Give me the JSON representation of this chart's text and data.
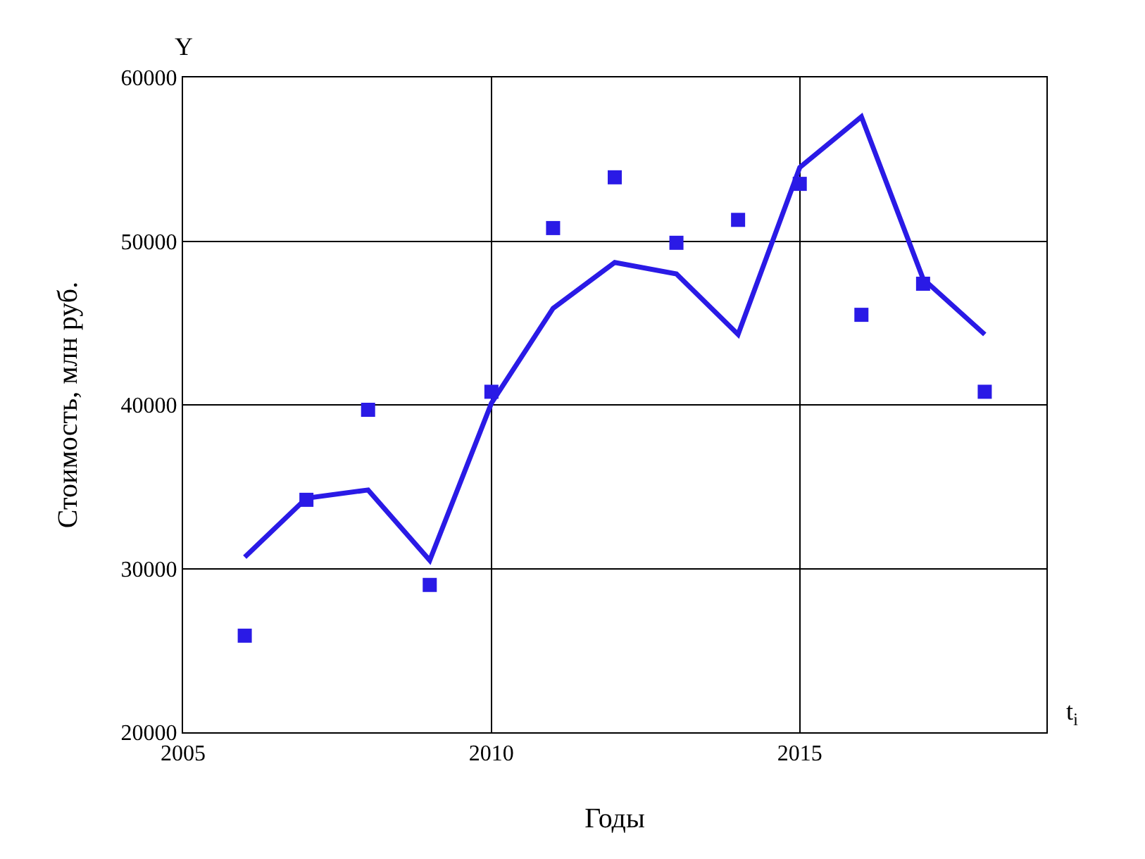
{
  "chart_data": {
    "type": "line",
    "xlabel": "Годы",
    "ylabel": "Стоимость, млн руб.",
    "annotations": [
      "Y",
      "t$_{i}$"
    ],
    "xlim": [
      2005,
      2019
    ],
    "xticks": [
      2005,
      2010,
      2015
    ],
    "ylim": [
      20000,
      60000
    ],
    "yticks": [
      20000,
      30000,
      40000,
      50000,
      60000
    ],
    "grid": true,
    "series": [
      {
        "color": "#2a1ae6",
        "marker": "none",
        "line_style": "solid",
        "x": [
          2006,
          2007,
          2008,
          2009,
          2010,
          2011,
          2012,
          2013,
          2014,
          2015,
          2016,
          2017,
          2018
        ],
        "values": [
          30700,
          34300,
          34800,
          30500,
          40100,
          45900,
          48700,
          48000,
          44300,
          54500,
          57600,
          47700,
          44300
        ]
      },
      {
        "type": "scatter",
        "color": "#2a1ae6",
        "marker": "square",
        "x": [
          2006,
          2007,
          2008,
          2009,
          2010,
          2011,
          2012,
          2013,
          2014,
          2015,
          2016,
          2017,
          2018
        ],
        "values": [
          25900,
          34200,
          39700,
          29000,
          40800,
          50800,
          53900,
          49900,
          51300,
          53500,
          45500,
          47400,
          40800
        ]
      }
    ]
  }
}
